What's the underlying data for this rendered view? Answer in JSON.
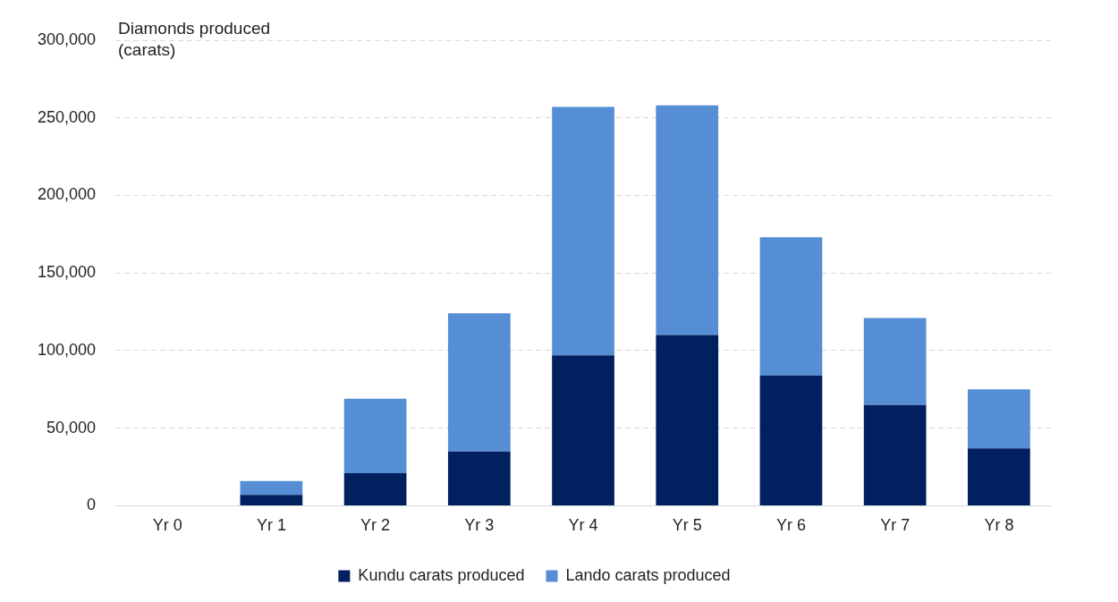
{
  "chart_data": {
    "type": "bar",
    "stacked": true,
    "ylabel": "Diamonds produced (carats)",
    "categories": [
      "Yr 0",
      "Yr 1",
      "Yr 2",
      "Yr 3",
      "Yr 4",
      "Yr 5",
      "Yr 6",
      "Yr 7",
      "Yr 8"
    ],
    "series": [
      {
        "name": "Kundu carats produced",
        "color": "#002060",
        "values": [
          0,
          7000,
          21000,
          35000,
          97000,
          110000,
          84000,
          65000,
          37000
        ]
      },
      {
        "name": "Lando carats produced",
        "color": "#558ed5",
        "values": [
          0,
          9000,
          48000,
          89000,
          160000,
          148000,
          89000,
          56000,
          38000
        ]
      }
    ],
    "ylim": [
      0,
      300000
    ],
    "yticks": [
      0,
      {
        "value": 50000,
        "label": "50,000"
      },
      {
        "value": 100000,
        "label": "100,000"
      },
      {
        "value": 150000,
        "label": "150,000"
      },
      {
        "value": 200000,
        "label": "200,000"
      },
      {
        "value": 250000,
        "label": "250,000"
      },
      {
        "value": 300000,
        "label": "300,000"
      }
    ],
    "grid": "y",
    "legend": "bottom"
  }
}
